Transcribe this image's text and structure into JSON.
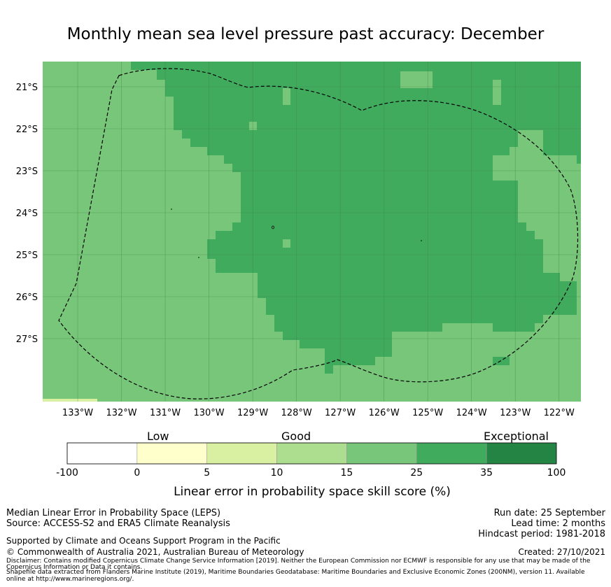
{
  "title": "Monthly mean sea level pressure past accuracy: December",
  "map": {
    "lon_range": [
      -133.8,
      -121.5
    ],
    "lat_range": [
      -28.5,
      -20.4
    ],
    "lon_ticks": [
      "133°W",
      "132°W",
      "131°W",
      "130°W",
      "129°W",
      "128°W",
      "127°W",
      "126°W",
      "125°W",
      "124°W",
      "123°W",
      "122°W"
    ],
    "lat_ticks": [
      "21°S",
      "22°S",
      "23°S",
      "24°S",
      "25°S",
      "26°S",
      "27°S"
    ],
    "colors": {
      "band_25_35": "#41ab5d",
      "band_15_25": "#78c679",
      "boundary": "#000000"
    }
  },
  "legend": {
    "categories": [
      "Low",
      "Good",
      "Exceptional"
    ],
    "tick_labels": [
      "-100",
      "0",
      "5",
      "10",
      "15",
      "25",
      "35",
      "100"
    ],
    "colors": [
      "#ffffff",
      "#ffffcc",
      "#d9f0a3",
      "#addd8e",
      "#78c679",
      "#41ab5d",
      "#238443"
    ],
    "title": "Linear error in probability space skill score (%)"
  },
  "footer": {
    "left1": "Median Linear Error in Probability Space (LEPS)",
    "left2": "Source: ACCESS-S2 and ERA5 Climate Reanalysis",
    "support": "Supported by Climate and Oceans Support Program in the Pacific",
    "copyright": "© Commonwealth of Australia 2021, Australian Bureau of Meteorology",
    "disclaimer1": "Disclaimer: Contains modified Copernicus Climate Change Service Information [2019]. Neither the European Commission nor ECMWF is responsible for any use that may be made of the",
    "disclaimer2": "Copernicus Information or Data it contains.",
    "shapefile1": "Shapefile data extracted from Flanders Marine Institute (2019), Maritime Boundaries Geodatabase: Maritime Boundaries and Exclusive Economic Zones (200NM), version 11. Available",
    "shapefile2": "online at http://www.marineregions.org/.",
    "run_date": "Run date: 25 September",
    "lead_time": "Lead time: 2 months",
    "hindcast": "Hindcast period: 1981-2018",
    "created": "Created: 27/10/2021"
  }
}
